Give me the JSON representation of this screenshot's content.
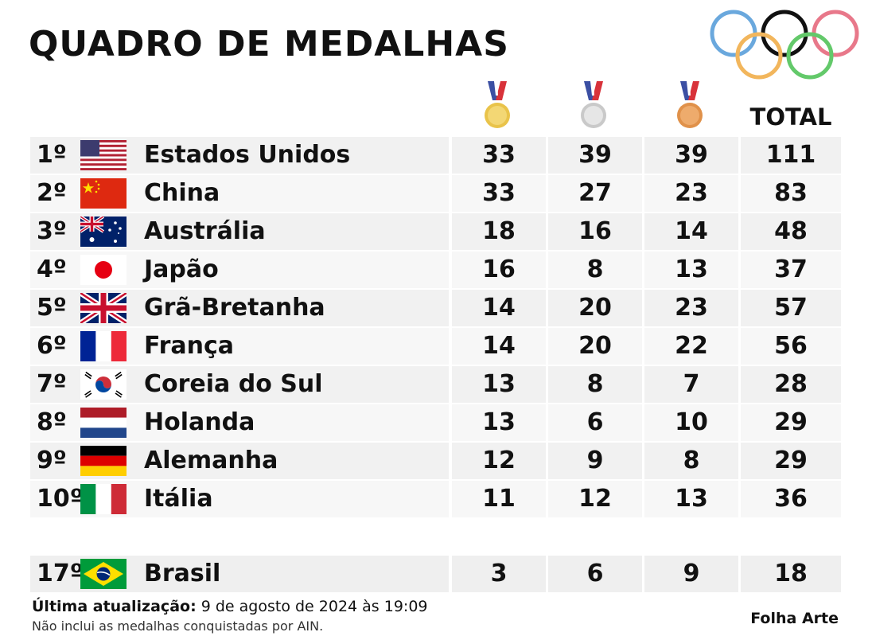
{
  "title": "QUADRO DE MEDALHAS",
  "headers": {
    "total": "TOTAL"
  },
  "medal_icons": [
    "gold-medal-icon",
    "silver-medal-icon",
    "bronze-medal-icon"
  ],
  "rows": [
    {
      "rank": "1º",
      "country": "Estados Unidos",
      "flag": "flag-usa-icon",
      "gold": "33",
      "silver": "39",
      "bronze": "39",
      "total": "111"
    },
    {
      "rank": "2º",
      "country": "China",
      "flag": "flag-china-icon",
      "gold": "33",
      "silver": "27",
      "bronze": "23",
      "total": "83"
    },
    {
      "rank": "3º",
      "country": "Austrália",
      "flag": "flag-australia-icon",
      "gold": "18",
      "silver": "16",
      "bronze": "14",
      "total": "48"
    },
    {
      "rank": "4º",
      "country": "Japão",
      "flag": "flag-japan-icon",
      "gold": "16",
      "silver": "8",
      "bronze": "13",
      "total": "37"
    },
    {
      "rank": "5º",
      "country": "Grã-Bretanha",
      "flag": "flag-uk-icon",
      "gold": "14",
      "silver": "20",
      "bronze": "23",
      "total": "57"
    },
    {
      "rank": "6º",
      "country": "França",
      "flag": "flag-france-icon",
      "gold": "14",
      "silver": "20",
      "bronze": "22",
      "total": "56"
    },
    {
      "rank": "7º",
      "country": "Coreia do Sul",
      "flag": "flag-south-korea-icon",
      "gold": "13",
      "silver": "8",
      "bronze": "7",
      "total": "28"
    },
    {
      "rank": "8º",
      "country": "Holanda",
      "flag": "flag-netherlands-icon",
      "gold": "13",
      "silver": "6",
      "bronze": "10",
      "total": "29"
    },
    {
      "rank": "9º",
      "country": "Alemanha",
      "flag": "flag-germany-icon",
      "gold": "12",
      "silver": "9",
      "bronze": "8",
      "total": "29"
    },
    {
      "rank": "10º",
      "country": "Itália",
      "flag": "flag-italy-icon",
      "gold": "11",
      "silver": "12",
      "bronze": "13",
      "total": "36"
    }
  ],
  "brasil": {
    "rank": "17º",
    "country": "Brasil",
    "flag": "flag-brazil-icon",
    "gold": "3",
    "silver": "6",
    "bronze": "9",
    "total": "18"
  },
  "footer": {
    "updated_label": "Última atualização:",
    "updated_value": "9 de agosto de 2024 às 19:09",
    "note": "Não inclui as medalhas conquistadas por AIN.",
    "credit": "Folha Arte"
  },
  "colors": {
    "ring_blue": "#6aa8dd",
    "ring_black": "#111111",
    "ring_red": "#e8788a",
    "ring_yellow": "#f2b65c",
    "ring_green": "#63c96a",
    "gold": "#e9c34a",
    "silver": "#d4d4d4",
    "bronze": "#e0914a"
  }
}
